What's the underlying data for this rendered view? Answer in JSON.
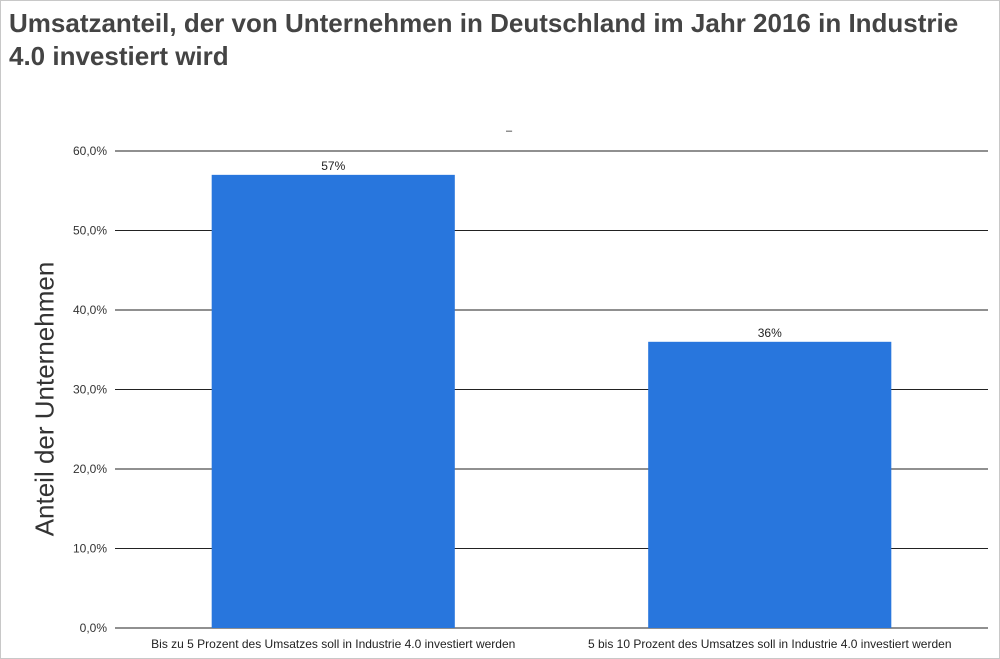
{
  "title": "Umsatzanteil, der von Unternehmen in Deutschland im Jahr 2016 in Industrie 4.0 investiert wird",
  "chart_data": {
    "type": "bar",
    "subtitle": "–",
    "ylabel": "Anteil der Unternehmen",
    "xlabel": "",
    "categories": [
      "Bis zu 5 Prozent des Umsatzes soll in Industrie 4.0 investiert werden",
      "5 bis 10 Prozent des Umsatzes soll in Industrie 4.0 investiert werden"
    ],
    "values": [
      57,
      36
    ],
    "data_labels": [
      "57%",
      "36%"
    ],
    "ylim": [
      0,
      60
    ],
    "yticks": [
      0,
      10,
      20,
      30,
      40,
      50,
      60
    ],
    "ytick_labels": [
      "0,0%",
      "10,0%",
      "20,0%",
      "30,0%",
      "40,0%",
      "50,0%",
      "60,0%"
    ],
    "grid": true,
    "bar_color": "#2876dd"
  }
}
